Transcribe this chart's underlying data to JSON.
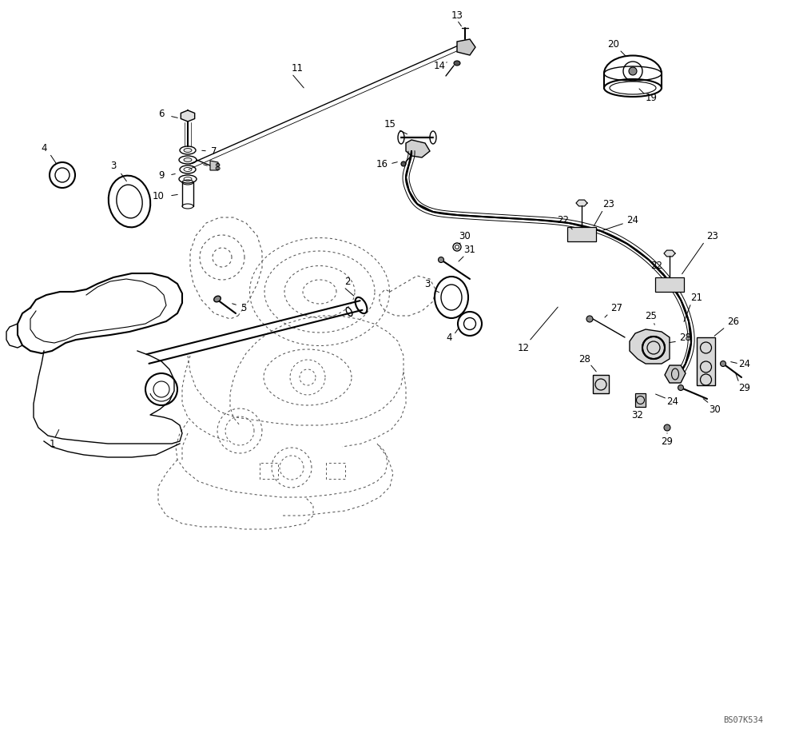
{
  "bg_color": "#ffffff",
  "line_color": "#000000",
  "dashed_color": "#555555",
  "fig_width": 10.0,
  "fig_height": 9.28,
  "dpi": 100,
  "watermark": "BS07K534"
}
